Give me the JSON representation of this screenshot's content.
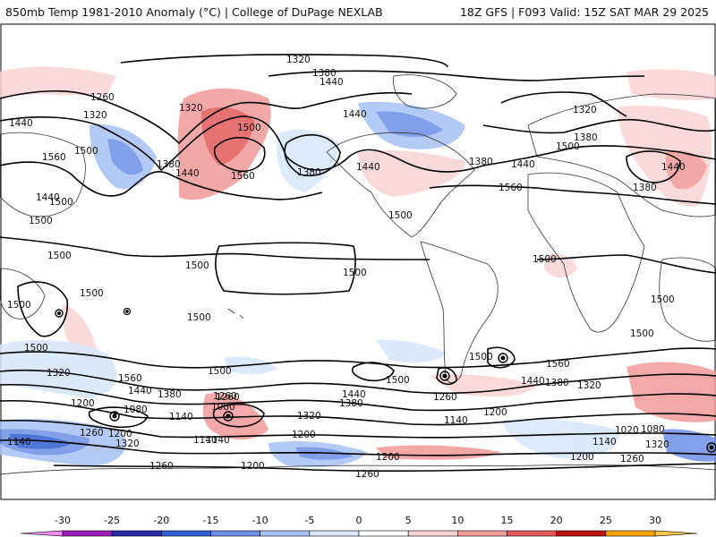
{
  "header": {
    "title_left": "850mb Temp 1981-2010 Anomaly (°C) | College of DuPage NEXLAB",
    "title_right": "18Z GFS | F093 Valid: 15Z SAT MAR 29 2025"
  },
  "colorbar": {
    "tick_labels": [
      "-30",
      "-25",
      "-20",
      "-15",
      "-10",
      "-5",
      "0",
      "5",
      "10",
      "15",
      "20",
      "25",
      "30"
    ],
    "range": [
      -30,
      30
    ],
    "colors": [
      {
        "from": -35,
        "to": -30,
        "color": "#f08cf0"
      },
      {
        "from": -30,
        "to": -25,
        "color": "#9a1fb5"
      },
      {
        "from": -25,
        "to": -20,
        "color": "#2a2aa8"
      },
      {
        "from": -20,
        "to": -15,
        "color": "#2f5fd0"
      },
      {
        "from": -15,
        "to": -10,
        "color": "#6d8fe6"
      },
      {
        "from": -10,
        "to": -5,
        "color": "#a7c1f5"
      },
      {
        "from": -5,
        "to": 0,
        "color": "#d7e6fb"
      },
      {
        "from": 0,
        "to": 5,
        "color": "#ffffff"
      },
      {
        "from": 5,
        "to": 10,
        "color": "#f8d3d3"
      },
      {
        "from": 10,
        "to": 15,
        "color": "#f19a9a"
      },
      {
        "from": 15,
        "to": 20,
        "color": "#e35a5a"
      },
      {
        "from": 20,
        "to": 25,
        "color": "#c01010"
      },
      {
        "from": 25,
        "to": 30,
        "color": "#f5a300"
      },
      {
        "from": 30,
        "to": 35,
        "color": "#f7c84a"
      }
    ]
  },
  "contour_labels": [
    "1320",
    "1380",
    "1440",
    "1260",
    "1320",
    "1440",
    "1500",
    "1560",
    "1500",
    "1500",
    "1380",
    "1440",
    "1500",
    "1560",
    "1320",
    "1440",
    "1380",
    "1440",
    "1440",
    "1500",
    "1560",
    "1380",
    "1440",
    "1320",
    "1500",
    "1380",
    "1380",
    "1440",
    "1500",
    "1500",
    "1500",
    "1500",
    "1500",
    "1500",
    "1500",
    "1500",
    "1500",
    "1500",
    "1500",
    "1500",
    "1560",
    "1500",
    "1440",
    "1380",
    "1320",
    "1440",
    "1380",
    "1320",
    "1260",
    "1200",
    "1080",
    "1140",
    "1260",
    "1320",
    "1200",
    "1140",
    "1080",
    "1140",
    "1260",
    "1380",
    "1440",
    "1320",
    "1200",
    "1140",
    "1200",
    "1200",
    "1260",
    "1260",
    "1200",
    "1140",
    "1080",
    "1020",
    "1140",
    "1320",
    "1200",
    "1260",
    "1560",
    "1260"
  ],
  "colors": {
    "warm_anomaly": "#f19a9a",
    "cold_anomaly": "#6d8fe6",
    "contour": "#000000",
    "borders": "#333333"
  }
}
